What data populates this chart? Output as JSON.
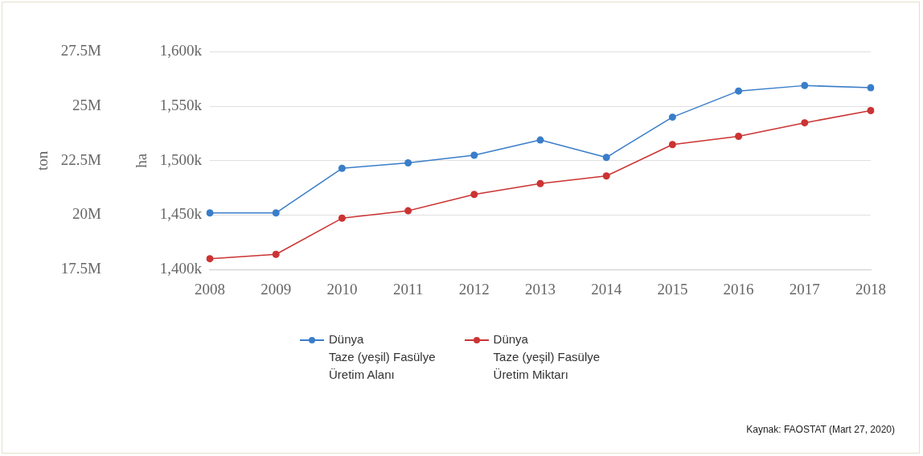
{
  "chart_data": {
    "type": "line",
    "categories": [
      "2008",
      "2009",
      "2010",
      "2011",
      "2012",
      "2013",
      "2014",
      "2015",
      "2016",
      "2017",
      "2018"
    ],
    "series": [
      {
        "name": "Dünya\nTaze (yeşil) Fasülye\nÜretim Alanı",
        "color": "#3a7dc9",
        "axis": "y2",
        "values": [
          1452,
          1452,
          1493,
          1498,
          1505,
          1519,
          1503,
          1540,
          1564,
          1569,
          1567
        ]
      },
      {
        "name": "Dünya\nTaze (yeşil) Fasülye\nÜretim Miktarı",
        "color": "#cc3333",
        "axis": "y",
        "values": [
          18.0,
          18.2,
          19.86,
          20.2,
          20.95,
          21.45,
          21.8,
          23.24,
          23.62,
          24.24,
          24.8
        ]
      }
    ],
    "ylabel": "ton",
    "y2label": "ha",
    "y2lim": [
      1400,
      1600
    ],
    "y2ticks": [
      {
        "value": 1400,
        "label": "1,400k"
      },
      {
        "value": 1450,
        "label": "1,450k"
      },
      {
        "value": 1500,
        "label": "1,500k"
      },
      {
        "value": 1550,
        "label": "1,550k"
      },
      {
        "value": 1600,
        "label": "1,600k"
      }
    ],
    "ylim": [
      17.5,
      27.5
    ],
    "yticks": [
      {
        "value": 17.5,
        "label": "17.5M"
      },
      {
        "value": 20,
        "label": "20M"
      },
      {
        "value": 22.5,
        "label": "22.5M"
      },
      {
        "value": 25,
        "label": "25M"
      },
      {
        "value": 27.5,
        "label": "27.5M"
      }
    ],
    "grid": "y",
    "legend": "bottom",
    "marker": "circle",
    "line_style": "solid",
    "annotations": [
      "Kaynak: FAOSTAT (Mart 27, 2020)"
    ]
  }
}
